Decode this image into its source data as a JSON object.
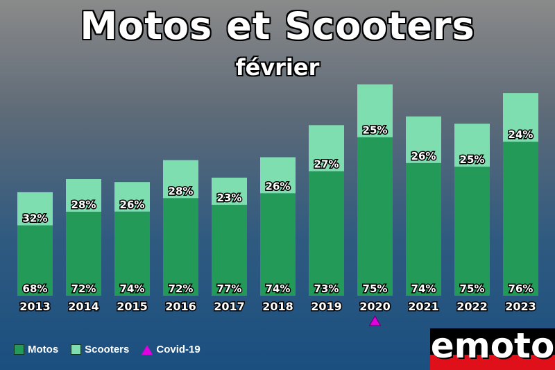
{
  "chart_data": {
    "type": "bar",
    "stacked": true,
    "title": "Motos et Scooters",
    "subtitle": "février",
    "categories": [
      "2013",
      "2014",
      "2015",
      "2016",
      "2017",
      "2018",
      "2019",
      "2020",
      "2021",
      "2022",
      "2023"
    ],
    "totals_relative": [
      0.71,
      0.8,
      0.78,
      0.93,
      0.81,
      0.95,
      1.17,
      1.45,
      1.23,
      1.18,
      1.39
    ],
    "series": [
      {
        "name": "Motos",
        "color": "#249a58",
        "values": [
          68,
          72,
          74,
          72,
          77,
          74,
          73,
          75,
          74,
          75,
          76
        ],
        "labels": [
          "68%",
          "72%",
          "74%",
          "72%",
          "77%",
          "74%",
          "73%",
          "75%",
          "74%",
          "75%",
          "76%"
        ]
      },
      {
        "name": "Scooters",
        "color": "#7fdeb0",
        "values": [
          32,
          28,
          26,
          28,
          23,
          26,
          27,
          25,
          26,
          25,
          24
        ],
        "labels": [
          "32%",
          "28%",
          "26%",
          "28%",
          "23%",
          "26%",
          "27%",
          "25%",
          "26%",
          "25%",
          "24%"
        ]
      }
    ],
    "annotations": [
      {
        "category": "2020",
        "marker": "triangle",
        "label": "Covid-19",
        "color": "#e000e0"
      }
    ],
    "legend": {
      "placement": "bottom-left",
      "items": [
        "Motos",
        "Scooters",
        "Covid-19"
      ]
    },
    "grid": false
  },
  "logo_text": "emoto"
}
